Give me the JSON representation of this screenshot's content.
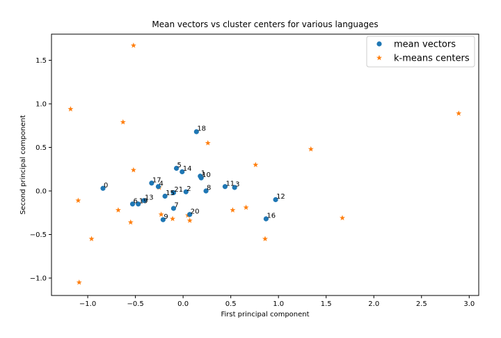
{
  "chart_data": {
    "type": "scatter",
    "title": "Mean vectors vs cluster centers for various languages",
    "xlabel": "First principal component",
    "ylabel": "Second principal component",
    "xlim": [
      -1.38,
      3.1
    ],
    "ylim": [
      -1.2,
      1.8
    ],
    "xticks": [
      -1.0,
      -0.5,
      0.0,
      0.5,
      1.0,
      1.5,
      2.0,
      2.5,
      3.0
    ],
    "xtick_labels": [
      "−1.0",
      "−0.5",
      "0.0",
      "0.5",
      "1.0",
      "1.5",
      "2.0",
      "2.5",
      "3.0"
    ],
    "yticks": [
      -1.0,
      -0.5,
      0.0,
      0.5,
      1.0,
      1.5
    ],
    "ytick_labels": [
      "−1.0",
      "−0.5",
      "0.0",
      "0.5",
      "1.0",
      "1.5"
    ],
    "grid": false,
    "legend_position": "top-right",
    "series": [
      {
        "name": "mean vectors",
        "marker": "circle",
        "color": "#1f77b4",
        "points": [
          {
            "x": -0.84,
            "y": 0.03,
            "label": "0"
          },
          {
            "x": 0.18,
            "y": 0.17,
            "label": "1"
          },
          {
            "x": 0.03,
            "y": -0.01,
            "label": "2"
          },
          {
            "x": 0.54,
            "y": 0.04,
            "label": "3"
          },
          {
            "x": -0.26,
            "y": 0.05,
            "label": "4"
          },
          {
            "x": -0.07,
            "y": 0.26,
            "label": "5"
          },
          {
            "x": -0.53,
            "y": -0.15,
            "label": "6"
          },
          {
            "x": -0.1,
            "y": -0.2,
            "label": "7"
          },
          {
            "x": 0.24,
            "y": 0.0,
            "label": "8"
          },
          {
            "x": -0.21,
            "y": -0.33,
            "label": "9"
          },
          {
            "x": 0.19,
            "y": 0.15,
            "label": "10"
          },
          {
            "x": 0.44,
            "y": 0.05,
            "label": "11"
          },
          {
            "x": 0.97,
            "y": -0.1,
            "label": "12"
          },
          {
            "x": -0.41,
            "y": -0.11,
            "label": "13"
          },
          {
            "x": -0.01,
            "y": 0.22,
            "label": "14"
          },
          {
            "x": -0.19,
            "y": -0.06,
            "label": "15"
          },
          {
            "x": 0.87,
            "y": -0.32,
            "label": "16"
          },
          {
            "x": -0.33,
            "y": 0.09,
            "label": "17"
          },
          {
            "x": 0.14,
            "y": 0.68,
            "label": "18"
          },
          {
            "x": -0.47,
            "y": -0.15,
            "label": "19"
          },
          {
            "x": 0.07,
            "y": -0.27,
            "label": "20"
          },
          {
            "x": -0.1,
            "y": -0.02,
            "label": "21"
          }
        ]
      },
      {
        "name": "k-means centers",
        "marker": "star",
        "color": "#ff7f0e",
        "points": [
          {
            "x": -0.52,
            "y": 1.67
          },
          {
            "x": -1.18,
            "y": 0.94
          },
          {
            "x": -0.63,
            "y": 0.79
          },
          {
            "x": 2.89,
            "y": 0.89
          },
          {
            "x": 0.26,
            "y": 0.55
          },
          {
            "x": 1.34,
            "y": 0.48
          },
          {
            "x": 0.76,
            "y": 0.3
          },
          {
            "x": -0.52,
            "y": 0.24
          },
          {
            "x": -0.25,
            "y": 0.04
          },
          {
            "x": -1.1,
            "y": -0.11
          },
          {
            "x": -0.68,
            "y": -0.22
          },
          {
            "x": 0.66,
            "y": -0.19
          },
          {
            "x": 0.52,
            "y": -0.22
          },
          {
            "x": -0.55,
            "y": -0.36
          },
          {
            "x": -0.23,
            "y": -0.27
          },
          {
            "x": -0.11,
            "y": -0.32
          },
          {
            "x": 0.05,
            "y": -0.28
          },
          {
            "x": 0.07,
            "y": -0.34
          },
          {
            "x": 1.67,
            "y": -0.31
          },
          {
            "x": -0.96,
            "y": -0.55
          },
          {
            "x": 0.86,
            "y": -0.55
          },
          {
            "x": -1.09,
            "y": -1.05
          }
        ]
      }
    ]
  }
}
